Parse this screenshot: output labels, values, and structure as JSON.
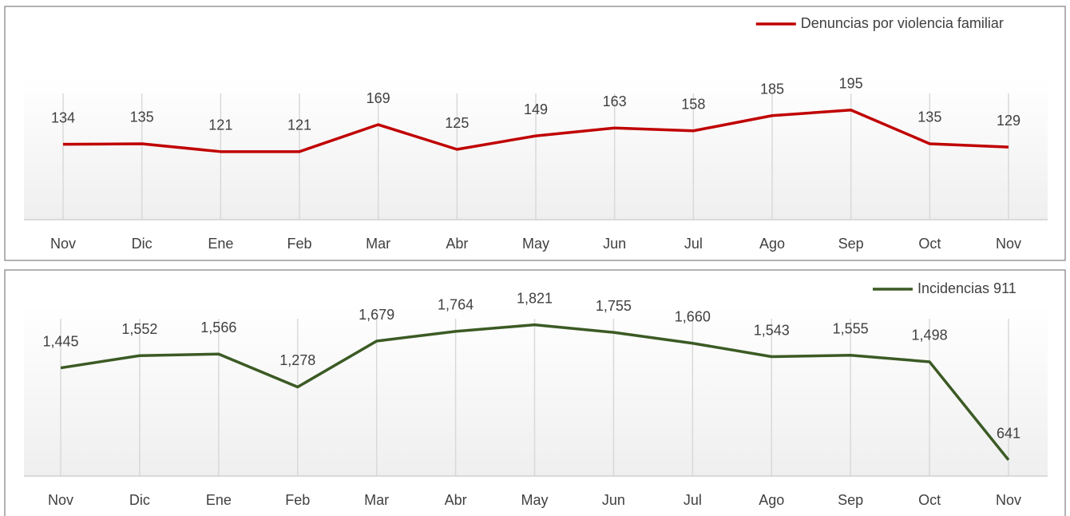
{
  "chart_data": [
    {
      "type": "line",
      "categories": [
        "Nov",
        "Dic",
        "Ene",
        "Feb",
        "Mar",
        "Abr",
        "May",
        "Jun",
        "Jul",
        "Ago",
        "Sep",
        "Oct",
        "Nov"
      ],
      "series": [
        {
          "name": "Denuncias por violencia familiar",
          "color": "#c00000",
          "values": [
            134,
            135,
            121,
            121,
            169,
            125,
            149,
            163,
            158,
            185,
            195,
            135,
            129
          ]
        }
      ],
      "ylim": [
        0,
        250
      ],
      "legend": "top-right"
    },
    {
      "type": "line",
      "categories": [
        "Nov",
        "Dic",
        "Ene",
        "Feb",
        "Mar",
        "Abr",
        "May",
        "Jun",
        "Jul",
        "Ago",
        "Sep",
        "Oct",
        "Nov"
      ],
      "series": [
        {
          "name": "Incidencias 911",
          "color": "#3b5a24",
          "values": [
            1445,
            1552,
            1566,
            1278,
            1679,
            1764,
            1821,
            1755,
            1660,
            1543,
            1555,
            1498,
            641
          ],
          "value_labels": [
            "1,445",
            "1,552",
            "1,566",
            "1,278",
            "1,679",
            "1,764",
            "1,821",
            "1,755",
            "1,660",
            "1,543",
            "1,555",
            "1,498",
            "641"
          ]
        }
      ],
      "ylim": [
        500,
        2000
      ],
      "legend": "top-right"
    }
  ]
}
